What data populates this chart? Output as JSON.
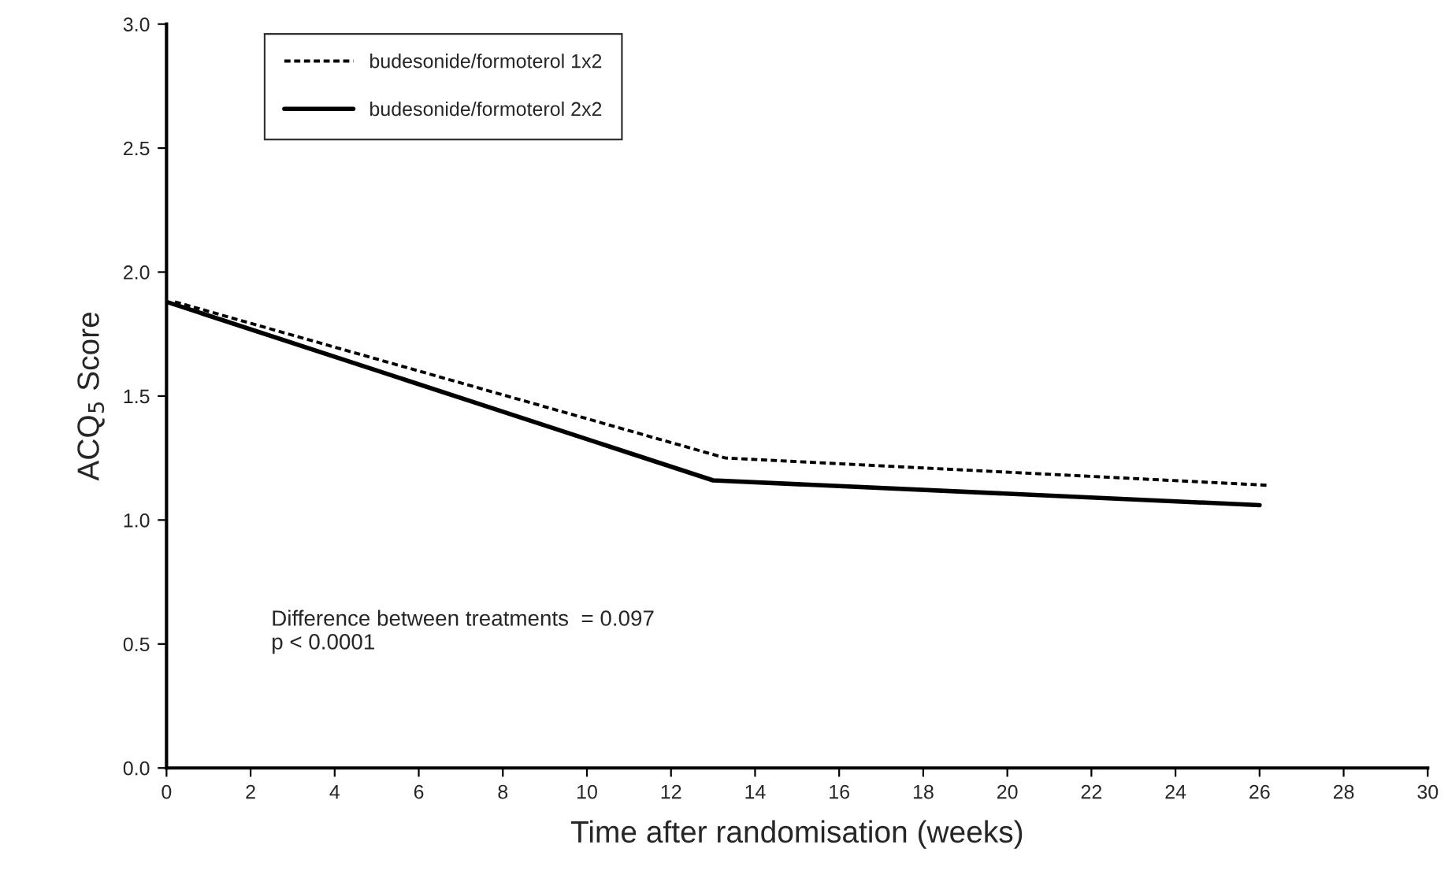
{
  "chart_data": {
    "type": "line",
    "xlabel": "Time after randomisation (weeks)",
    "ylabel": "ACQ$_{5}$ Score",
    "series": [
      {
        "name": "budesonide/formoterol 1x2",
        "color": "#000000",
        "line_style": "dashed",
        "x": [
          0.2,
          13.3,
          26.2
        ],
        "values": [
          1.88,
          1.25,
          1.14
        ]
      },
      {
        "name": "budesonide/formoterol 2x2",
        "color": "#000000",
        "line_style": "solid",
        "x": [
          0,
          13,
          26
        ],
        "values": [
          1.88,
          1.16,
          1.06
        ]
      }
    ],
    "xlim": [
      0,
      30
    ],
    "xticks": [
      0,
      2,
      4,
      6,
      8,
      10,
      12,
      14,
      16,
      18,
      20,
      22,
      24,
      26,
      28,
      30
    ],
    "ylim": [
      0,
      3
    ],
    "yticks": [
      {
        "value": 0,
        "label": "0.0"
      },
      {
        "value": 0.5,
        "label": "0.5"
      },
      {
        "value": 1,
        "label": "1.0"
      },
      {
        "value": 1.5,
        "label": "1.5"
      },
      {
        "value": 2,
        "label": "2.0"
      },
      {
        "value": 2.5,
        "label": "2.5"
      },
      {
        "value": 3,
        "label": "3.0"
      }
    ],
    "annotations": [
      "Difference between treatments  = 0.097\np < 0.0001"
    ],
    "legend": "top left",
    "grid": false,
    "marker": "none"
  }
}
